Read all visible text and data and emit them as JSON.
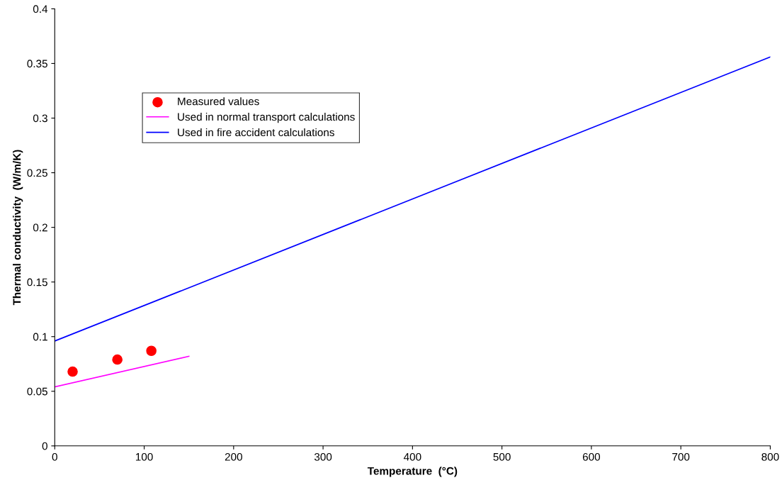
{
  "chart_data": {
    "type": "line",
    "xlabel": "Temperature  (°C)",
    "ylabel": "Thermal conductivity  (W/m/K)",
    "xlim": [
      0,
      800
    ],
    "xticks": [
      0,
      100,
      200,
      300,
      400,
      500,
      600,
      700,
      800
    ],
    "ylim": [
      0,
      0.4
    ],
    "yticks": [
      0,
      0.05,
      0.1,
      0.15,
      0.2,
      0.25,
      0.3,
      0.35,
      0.4
    ],
    "grid": false,
    "legend": "top left",
    "series": [
      {
        "name": "Measured values",
        "type": "scatter",
        "marker": "circle",
        "color": "#ff0000",
        "x": [
          20,
          70,
          108
        ],
        "values": [
          0.068,
          0.079,
          0.087
        ]
      },
      {
        "name": "Used in normal transport calculations",
        "color": "#ff00ff",
        "x": [
          0,
          150
        ],
        "values": [
          0.054,
          0.082
        ]
      },
      {
        "name": "Used in fire accident calculations",
        "color": "#0000ff",
        "x": [
          0,
          800
        ],
        "values": [
          0.096,
          0.356
        ]
      }
    ]
  }
}
